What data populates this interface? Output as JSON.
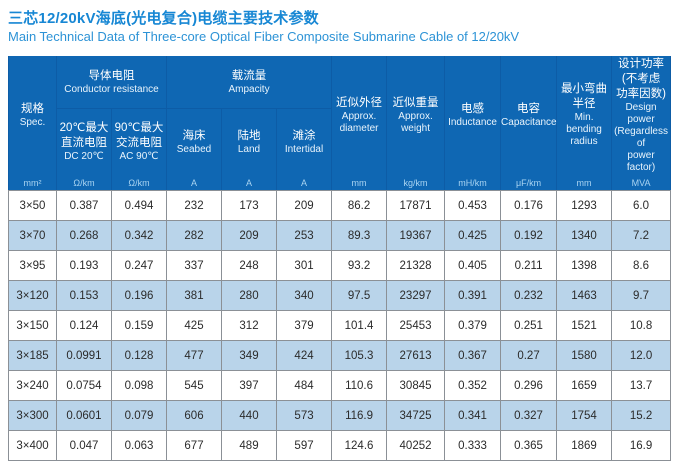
{
  "title": {
    "zh": "三芯12/20kV海底(光电复合)电缆主要技术参数",
    "en": "Main Technical Data of Three-core Optical Fiber Composite Submarine Cable of 12/20kV"
  },
  "colors": {
    "title_blue": "#1787d4",
    "subtitle_blue": "#2d93d6",
    "header_bg": "#0f67b3",
    "header_border": "#0d5ca6",
    "alt_row_bg": "#b9d4ea",
    "data_border": "#8b9096"
  },
  "table": {
    "header": {
      "spec": {
        "zh": "规格",
        "en": "Spec."
      },
      "groups": [
        {
          "zh": "导体电阻",
          "en": "Conductor resistance"
        },
        {
          "zh": "载流量",
          "en": "Ampacity"
        }
      ],
      "sub": [
        {
          "zh": "20℃最大\n直流电阻",
          "en": "DC 20℃"
        },
        {
          "zh": "90℃最大\n交流电阻",
          "en": "AC 90℃"
        },
        {
          "zh": "海床",
          "en": "Seabed"
        },
        {
          "zh": "陆地",
          "en": "Land"
        },
        {
          "zh": "滩涂",
          "en": "Intertidal"
        }
      ],
      "singles": [
        {
          "zh": "近似外径",
          "en": "Approx.\ndiameter"
        },
        {
          "zh": "近似重量",
          "en": "Approx.\nweight"
        },
        {
          "zh": "电感",
          "en": "Inductance"
        },
        {
          "zh": "电容",
          "en": "Capacitance"
        },
        {
          "zh": "最小弯曲\n半径",
          "en": "Min.\nbending\nradius"
        },
        {
          "zh": "设计功率\n(不考虑\n功率因数)",
          "en": "Design\npower\n(Regardless of\npower factor)"
        }
      ],
      "units": [
        "mm²",
        "Ω/km",
        "Ω/km",
        "A",
        "A",
        "A",
        "mm",
        "kg/km",
        "mH/km",
        "μF/km",
        "mm",
        "MVA"
      ]
    },
    "rows": [
      [
        "3×50",
        "0.387",
        "0.494",
        "232",
        "173",
        "209",
        "86.2",
        "17871",
        "0.453",
        "0.176",
        "1293",
        "6.0"
      ],
      [
        "3×70",
        "0.268",
        "0.342",
        "282",
        "209",
        "253",
        "89.3",
        "19367",
        "0.425",
        "0.192",
        "1340",
        "7.2"
      ],
      [
        "3×95",
        "0.193",
        "0.247",
        "337",
        "248",
        "301",
        "93.2",
        "21328",
        "0.405",
        "0.211",
        "1398",
        "8.6"
      ],
      [
        "3×120",
        "0.153",
        "0.196",
        "381",
        "280",
        "340",
        "97.5",
        "23297",
        "0.391",
        "0.232",
        "1463",
        "9.7"
      ],
      [
        "3×150",
        "0.124",
        "0.159",
        "425",
        "312",
        "379",
        "101.4",
        "25453",
        "0.379",
        "0.251",
        "1521",
        "10.8"
      ],
      [
        "3×185",
        "0.0991",
        "0.128",
        "477",
        "349",
        "424",
        "105.3",
        "27613",
        "0.367",
        "0.27",
        "1580",
        "12.0"
      ],
      [
        "3×240",
        "0.0754",
        "0.098",
        "545",
        "397",
        "484",
        "110.6",
        "30845",
        "0.352",
        "0.296",
        "1659",
        "13.7"
      ],
      [
        "3×300",
        "0.0601",
        "0.079",
        "606",
        "440",
        "573",
        "116.9",
        "34725",
        "0.341",
        "0.327",
        "1754",
        "15.2"
      ],
      [
        "3×400",
        "0.047",
        "0.063",
        "677",
        "489",
        "597",
        "124.6",
        "40252",
        "0.333",
        "0.365",
        "1869",
        "16.9"
      ]
    ]
  }
}
